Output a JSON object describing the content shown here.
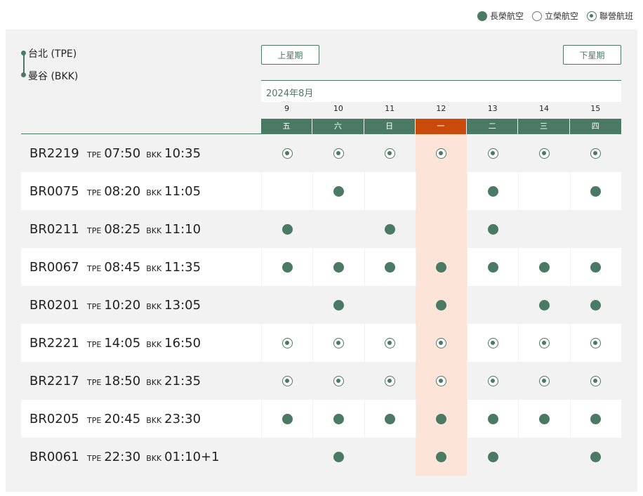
{
  "legend": [
    {
      "label": "長榮航空",
      "icon": "solid-dot-icon"
    },
    {
      "label": "立榮航空",
      "icon": "hollow-dot-icon"
    },
    {
      "label": "聯營航班",
      "icon": "codeshare-dot-icon"
    }
  ],
  "route": {
    "from": "台北 (TPE)",
    "to": "曼谷 (BKK)"
  },
  "nav": {
    "prev_label": "上星期",
    "next_label": "下星期"
  },
  "month": "2024年8月",
  "days": [
    {
      "num": "9",
      "weekday": "五",
      "today": false
    },
    {
      "num": "10",
      "weekday": "六",
      "today": false
    },
    {
      "num": "11",
      "weekday": "日",
      "today": false
    },
    {
      "num": "12",
      "weekday": "一",
      "today": true
    },
    {
      "num": "13",
      "weekday": "二",
      "today": false
    },
    {
      "num": "14",
      "weekday": "三",
      "today": false
    },
    {
      "num": "15",
      "weekday": "四",
      "today": false
    }
  ],
  "colors": {
    "brand_green": "#4a7a63",
    "today_orange": "#c94a0a",
    "today_bg": "#fde4d8"
  },
  "flights": [
    {
      "no": "BR2219",
      "dep_apt": "TPE",
      "dep": "07:50",
      "arr_apt": "BKK",
      "arr": "10:35",
      "ops": [
        "c",
        "c",
        "c",
        "c",
        "c",
        "c",
        "c"
      ]
    },
    {
      "no": "BR0075",
      "dep_apt": "TPE",
      "dep": "08:20",
      "arr_apt": "BKK",
      "arr": "11:05",
      "ops": [
        "",
        "s",
        "",
        "",
        "s",
        "",
        "s"
      ]
    },
    {
      "no": "BR0211",
      "dep_apt": "TPE",
      "dep": "08:25",
      "arr_apt": "BKK",
      "arr": "11:10",
      "ops": [
        "s",
        "",
        "s",
        "",
        "s",
        "",
        ""
      ]
    },
    {
      "no": "BR0067",
      "dep_apt": "TPE",
      "dep": "08:45",
      "arr_apt": "BKK",
      "arr": "11:35",
      "ops": [
        "s",
        "s",
        "s",
        "s",
        "s",
        "s",
        "s"
      ]
    },
    {
      "no": "BR0201",
      "dep_apt": "TPE",
      "dep": "10:20",
      "arr_apt": "BKK",
      "arr": "13:05",
      "ops": [
        "",
        "s",
        "",
        "s",
        "",
        "s",
        "s"
      ]
    },
    {
      "no": "BR2221",
      "dep_apt": "TPE",
      "dep": "14:05",
      "arr_apt": "BKK",
      "arr": "16:50",
      "ops": [
        "c",
        "c",
        "c",
        "c",
        "c",
        "c",
        "c"
      ]
    },
    {
      "no": "BR2217",
      "dep_apt": "TPE",
      "dep": "18:50",
      "arr_apt": "BKK",
      "arr": "21:35",
      "ops": [
        "c",
        "c",
        "c",
        "c",
        "c",
        "c",
        "c"
      ]
    },
    {
      "no": "BR0205",
      "dep_apt": "TPE",
      "dep": "20:45",
      "arr_apt": "BKK",
      "arr": "23:30",
      "ops": [
        "s",
        "s",
        "s",
        "s",
        "s",
        "s",
        "s"
      ]
    },
    {
      "no": "BR0061",
      "dep_apt": "TPE",
      "dep": "22:30",
      "arr_apt": "BKK",
      "arr": "01:10+1",
      "ops": [
        "",
        "s",
        "",
        "s",
        "s",
        "",
        "s"
      ]
    }
  ]
}
